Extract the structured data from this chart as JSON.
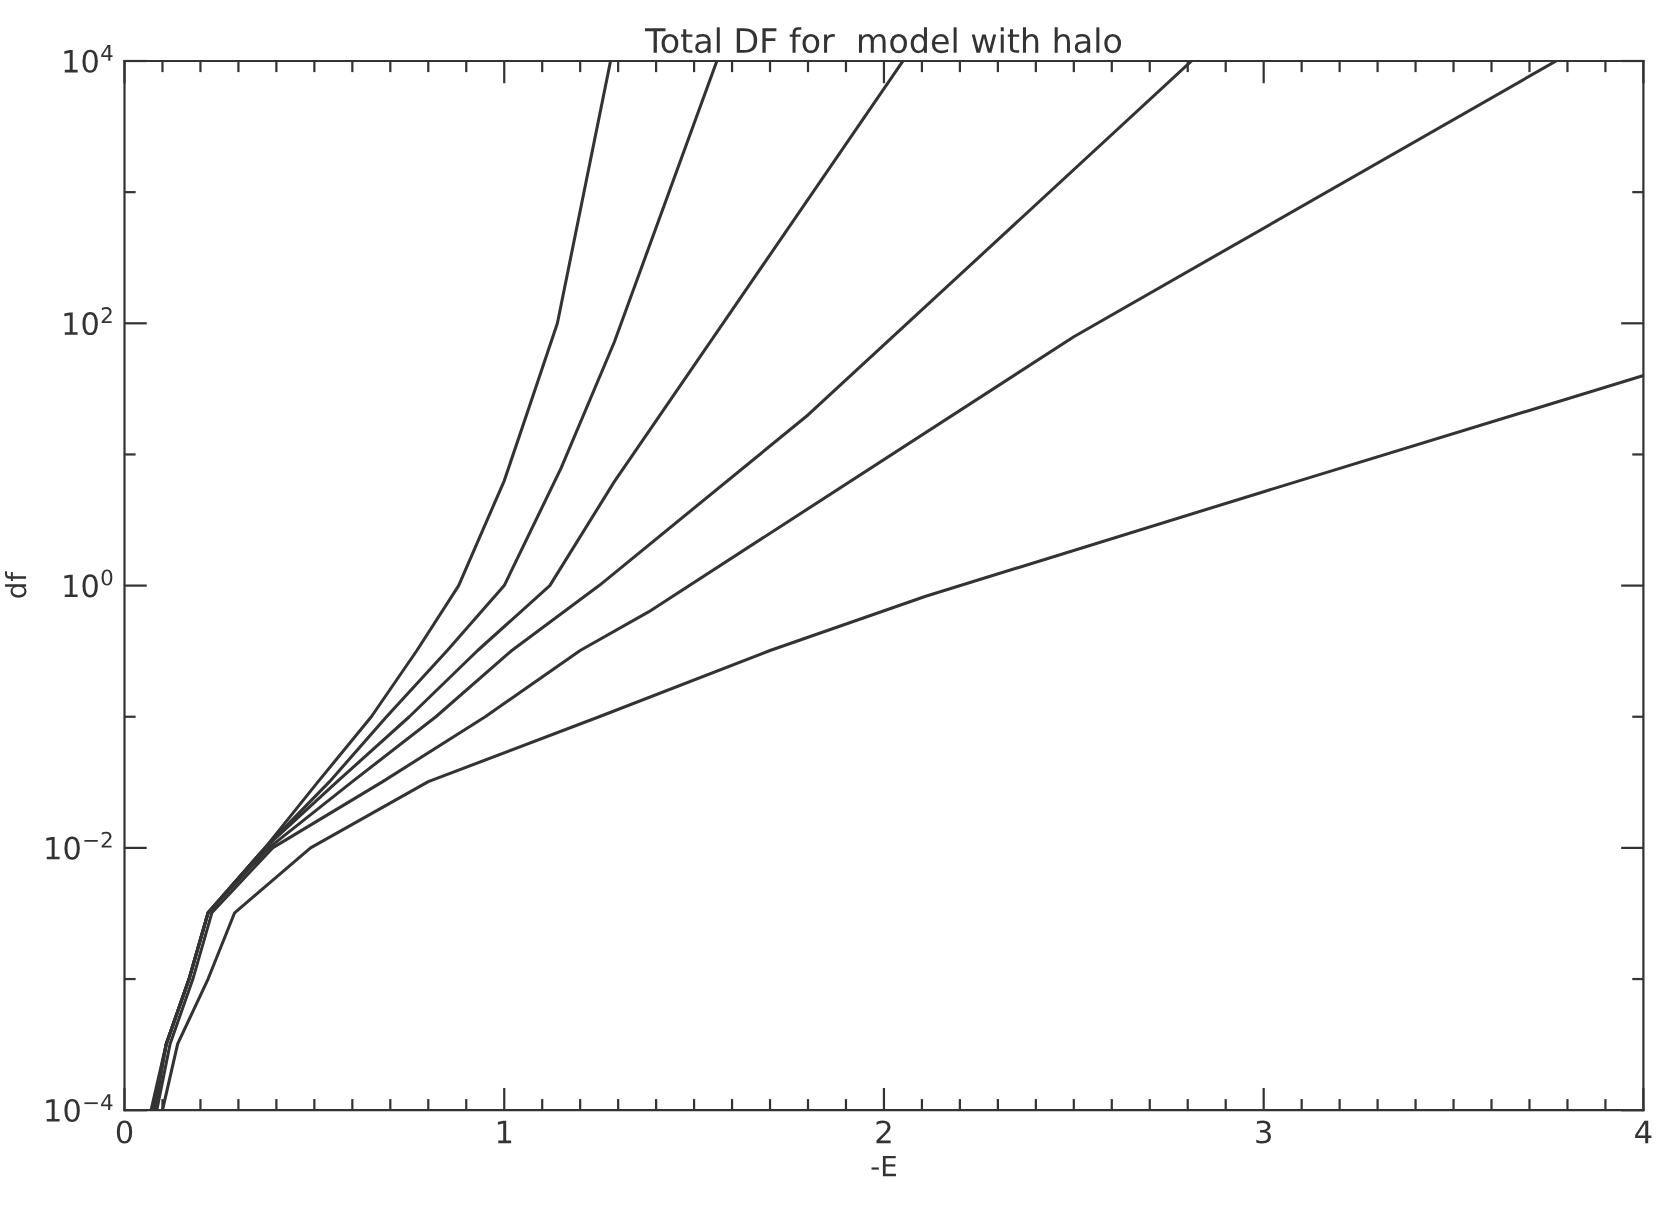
{
  "chart_data": {
    "type": "line",
    "title": "Total DF for  model with halo",
    "xlabel": "-E",
    "ylabel": "df",
    "log": "y",
    "xlim": [
      0,
      4
    ],
    "ylim": [
      0.0001,
      10000
    ],
    "xticks": [
      0,
      {
        "value": 0.1,
        "label": null
      },
      {
        "value": 0.2,
        "label": null
      },
      {
        "value": 0.3,
        "label": null
      },
      {
        "value": 0.4,
        "label": null
      },
      {
        "value": 0.5,
        "label": null
      },
      {
        "value": 0.6,
        "label": null
      },
      {
        "value": 0.7,
        "label": null
      },
      {
        "value": 0.8,
        "label": null
      },
      {
        "value": 0.9,
        "label": null
      },
      1,
      {
        "value": 1.1,
        "label": null
      },
      {
        "value": 1.2,
        "label": null
      },
      {
        "value": 1.3,
        "label": null
      },
      {
        "value": 1.4,
        "label": null
      },
      {
        "value": 1.5,
        "label": null
      },
      {
        "value": 1.6,
        "label": null
      },
      {
        "value": 1.7,
        "label": null
      },
      {
        "value": 1.8,
        "label": null
      },
      {
        "value": 1.9,
        "label": null
      },
      2,
      {
        "value": 2.1,
        "label": null
      },
      {
        "value": 2.2,
        "label": null
      },
      {
        "value": 2.3,
        "label": null
      },
      {
        "value": 2.4,
        "label": null
      },
      {
        "value": 2.5,
        "label": null
      },
      {
        "value": 2.6,
        "label": null
      },
      {
        "value": 2.7,
        "label": null
      },
      {
        "value": 2.8,
        "label": null
      },
      {
        "value": 2.9,
        "label": null
      },
      3,
      {
        "value": 3.1,
        "label": null
      },
      {
        "value": 3.2,
        "label": null
      },
      {
        "value": 3.3,
        "label": null
      },
      {
        "value": 3.4,
        "label": null
      },
      {
        "value": 3.5,
        "label": null
      },
      {
        "value": 3.6,
        "label": null
      },
      {
        "value": 3.7,
        "label": null
      },
      {
        "value": 3.8,
        "label": null
      },
      {
        "value": 3.9,
        "label": null
      },
      4
    ],
    "yticks": [
      {
        "value": 0.0001,
        "label": "10$^{−4}$"
      },
      {
        "value": 0.001,
        "label": null
      },
      {
        "value": 0.01,
        "label": "10$^{−2}$"
      },
      {
        "value": 0.1,
        "label": null
      },
      {
        "value": 1,
        "label": "10$^{0}$"
      },
      {
        "value": 10,
        "label": null
      },
      {
        "value": 100,
        "label": "10$^{2}$"
      },
      {
        "value": 1000,
        "label": null
      },
      {
        "value": 10000,
        "label": "10$^{4}$"
      }
    ],
    "grid": false,
    "marker": "none",
    "line_style": "solid",
    "series": [
      {
        "color": "#333333",
        "x": [
          0.07,
          0.11,
          0.17,
          0.22,
          0.37,
          0.51,
          0.65,
          0.77,
          0.88,
          1.0,
          1.07,
          1.14,
          1.28
        ],
        "values": [
          0.0001,
          0.00032,
          0.001,
          0.0032,
          0.01,
          0.032,
          0.1,
          0.32,
          1,
          6.3,
          25,
          100,
          10000
        ]
      },
      {
        "color": "#333333",
        "x": [
          0.075,
          0.11,
          0.17,
          0.22,
          0.37,
          0.54,
          0.69,
          0.85,
          1.0,
          1.15,
          1.29,
          1.56
        ],
        "values": [
          0.0001,
          0.00032,
          0.001,
          0.0032,
          0.01,
          0.032,
          0.1,
          0.32,
          1,
          7.9,
          72,
          10000
        ]
      },
      {
        "color": "#333333",
        "x": [
          0.075,
          0.11,
          0.17,
          0.22,
          0.37,
          0.56,
          0.75,
          0.93,
          1.12,
          1.29,
          1.6,
          2.05
        ],
        "values": [
          0.0001,
          0.00032,
          0.001,
          0.0032,
          0.01,
          0.032,
          0.1,
          0.32,
          1,
          6.2,
          126,
          10000
        ]
      },
      {
        "color": "#333333",
        "x": [
          0.08,
          0.11,
          0.17,
          0.22,
          0.38,
          0.6,
          0.82,
          1.02,
          1.25,
          1.8,
          2.81
        ],
        "values": [
          0.0001,
          0.00032,
          0.001,
          0.0032,
          0.01,
          0.032,
          0.1,
          0.32,
          1,
          20,
          10000
        ]
      },
      {
        "color": "#333333",
        "x": [
          0.085,
          0.12,
          0.18,
          0.23,
          0.39,
          0.68,
          0.95,
          1.2,
          1.38,
          2.5,
          3.77
        ],
        "values": [
          0.0001,
          0.00032,
          0.001,
          0.0032,
          0.01,
          0.032,
          0.1,
          0.32,
          0.63,
          79,
          10000
        ]
      },
      {
        "color": "#333333",
        "x": [
          0.1,
          0.14,
          0.22,
          0.29,
          0.49,
          0.8,
          1.25,
          1.7,
          2.11,
          3.0,
          4.0
        ],
        "values": [
          0.0001,
          0.00032,
          0.001,
          0.0032,
          0.01,
          0.032,
          0.1,
          0.32,
          0.83,
          5.2,
          40
        ]
      }
    ]
  }
}
